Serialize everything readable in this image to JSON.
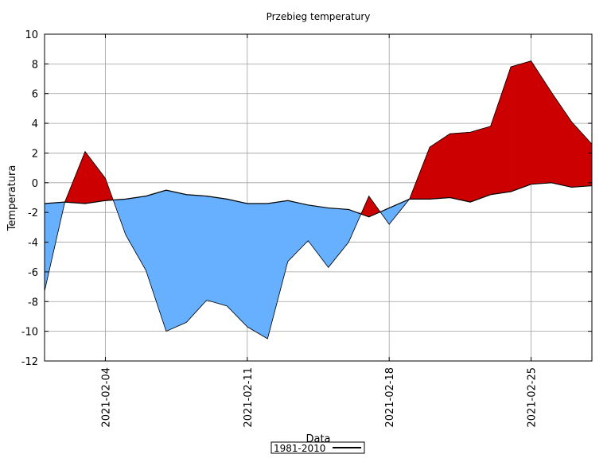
{
  "chart_data": {
    "type": "area",
    "title": "Przebieg temperatury",
    "xlabel": "Data",
    "ylabel": "Temperatura",
    "ylim": [
      -12,
      10
    ],
    "yticks": [
      -12,
      -10,
      -8,
      -6,
      -4,
      -2,
      0,
      2,
      4,
      6,
      8,
      10
    ],
    "x": [
      "2021-02-01",
      "2021-02-02",
      "2021-02-03",
      "2021-02-04",
      "2021-02-05",
      "2021-02-06",
      "2021-02-07",
      "2021-02-08",
      "2021-02-09",
      "2021-02-10",
      "2021-02-11",
      "2021-02-12",
      "2021-02-13",
      "2021-02-14",
      "2021-02-15",
      "2021-02-16",
      "2021-02-17",
      "2021-02-18",
      "2021-02-19",
      "2021-02-20",
      "2021-02-21",
      "2021-02-22",
      "2021-02-23",
      "2021-02-24",
      "2021-02-25",
      "2021-02-26",
      "2021-02-27",
      "2021-02-28"
    ],
    "xticks": [
      "2021-02-04",
      "2021-02-11",
      "2021-02-18",
      "2021-02-25"
    ],
    "series": [
      {
        "name": "",
        "values": [
          -7.3,
          -1.3,
          2.1,
          0.3,
          -3.5,
          -5.9,
          -10.0,
          -9.4,
          -7.9,
          -8.3,
          -9.7,
          -10.5,
          -5.3,
          -3.9,
          -5.7,
          -4.0,
          -0.9,
          -2.8,
          -1.1,
          2.4,
          3.3,
          3.4,
          3.8,
          7.8,
          8.2,
          6.1,
          4.1,
          2.6
        ]
      },
      {
        "name": "1981-2010",
        "values": [
          -1.4,
          -1.3,
          -1.4,
          -1.2,
          -1.1,
          -0.9,
          -0.5,
          -0.8,
          -0.9,
          -1.1,
          -1.4,
          -1.4,
          -1.2,
          -1.5,
          -1.7,
          -1.8,
          -2.3,
          -1.7,
          -1.1,
          -1.1,
          -1.0,
          -1.3,
          -0.8,
          -0.6,
          -0.1,
          0.0,
          -0.3,
          -0.2
        ]
      }
    ],
    "colors": {
      "above": "#cc0000",
      "below": "#66b0ff",
      "grid": "#a0a0a0",
      "line": "#000000"
    },
    "grid": true,
    "legend": "bottom-center"
  }
}
